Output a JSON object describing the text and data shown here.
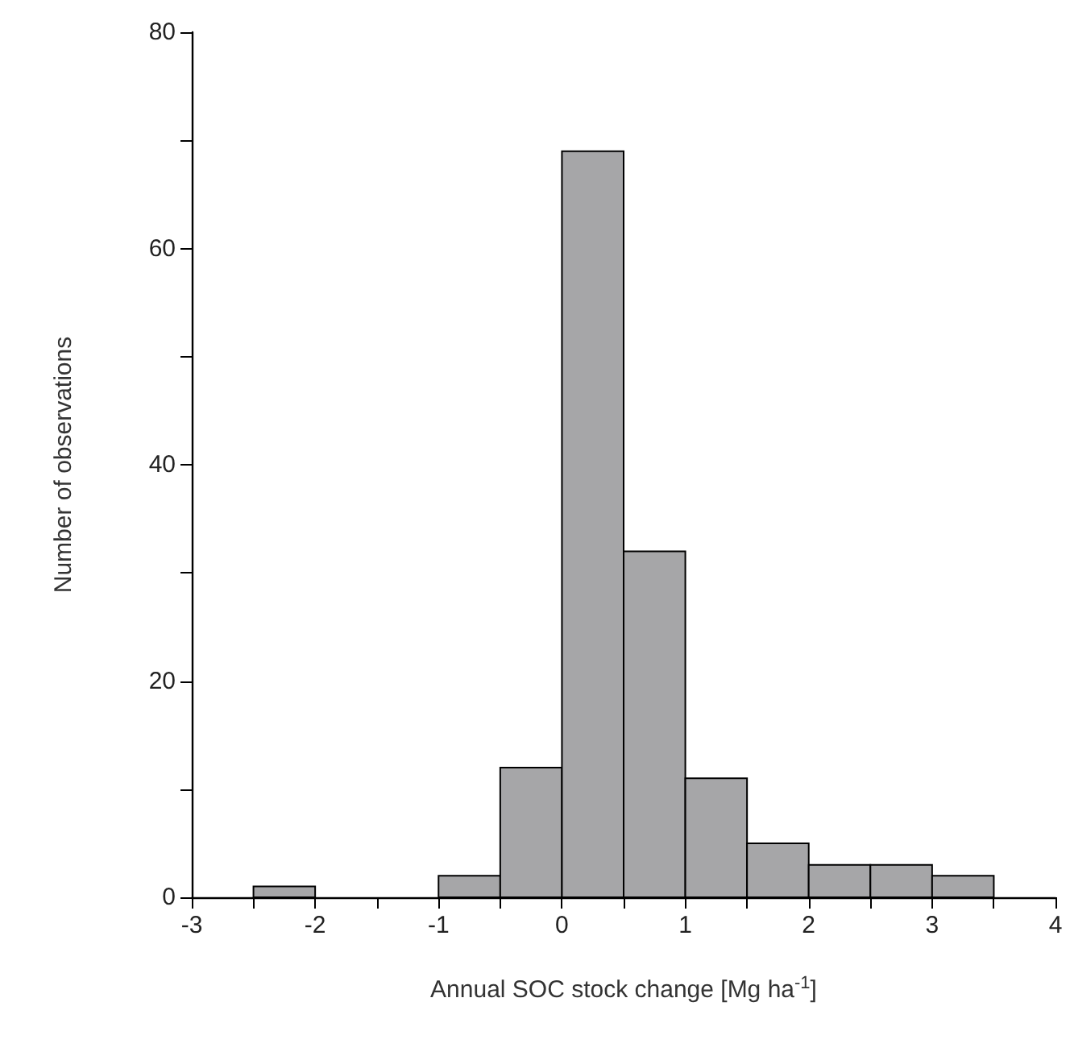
{
  "chart_data": {
    "type": "histogram",
    "xlabel": "Annual SOC stock change [Mg ha$^{-1}$]",
    "ylabel": "Number of observations",
    "bins": [
      -3,
      -2.5,
      -2,
      -1.5,
      -1,
      -0.5,
      0,
      0.5,
      1,
      1.5,
      2,
      2.5,
      3,
      3.5,
      4
    ],
    "values": [
      0,
      1,
      0,
      0,
      2,
      12,
      69,
      32,
      11,
      5,
      3,
      3,
      2,
      0
    ],
    "color": "#a6a6a8",
    "xlim": [
      -3,
      4
    ],
    "xticks": [
      -3,
      {
        "value": -2.5,
        "label": null
      },
      -2,
      {
        "value": -1.5,
        "label": null
      },
      -1,
      {
        "value": -0.5,
        "label": null
      },
      0,
      {
        "value": 0.5,
        "label": null
      },
      1,
      {
        "value": 1.5,
        "label": null
      },
      2,
      {
        "value": 2.5,
        "label": null
      },
      3,
      {
        "value": 3.5,
        "label": null
      },
      4
    ],
    "ylim": [
      0,
      80
    ],
    "yticks": [
      0,
      {
        "value": 10,
        "label": null
      },
      20,
      {
        "value": 30,
        "label": null
      },
      40,
      {
        "value": 50,
        "label": null
      },
      60,
      {
        "value": 70,
        "label": null
      },
      80
    ]
  }
}
